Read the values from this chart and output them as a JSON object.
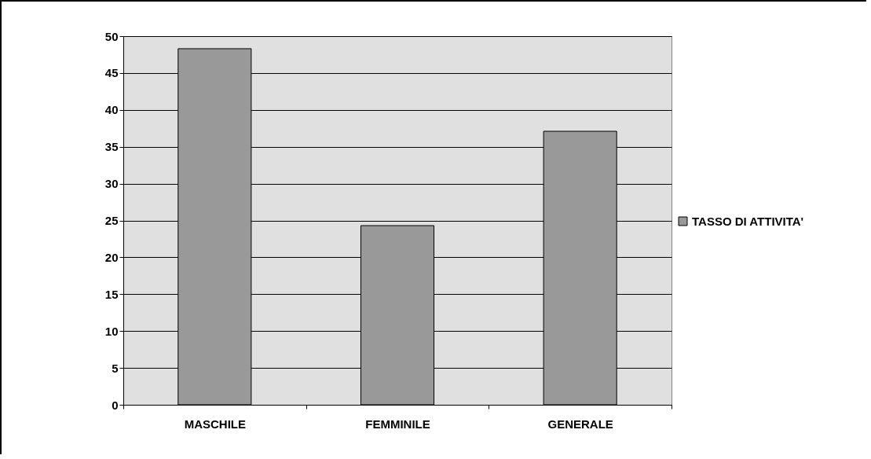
{
  "chart_data": {
    "type": "bar",
    "categories": [
      "MASCHILE",
      "FEMMINILE",
      "GENERALE"
    ],
    "series": [
      {
        "name": "TASSO DI ATTIVITA'",
        "color": "#999999",
        "values": [
          48.3,
          24.3,
          37.1
        ]
      }
    ],
    "ylim": [
      0,
      50
    ],
    "yticks": [
      0,
      5,
      10,
      15,
      20,
      25,
      30,
      35,
      40,
      45,
      50
    ],
    "grid": "y",
    "legend": "right"
  }
}
